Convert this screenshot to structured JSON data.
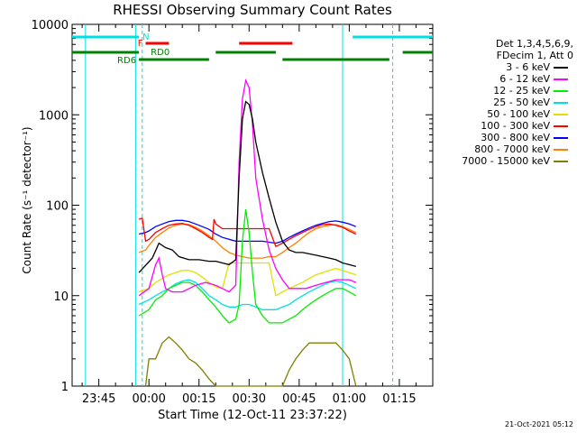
{
  "chart_data": {
    "type": "line",
    "title": "RHESSI Observing Summary Count Rates",
    "xlabel": "Start Time (12-Oct-11 23:37:22)",
    "ylabel": "Count Rate (s⁻¹ detector⁻¹)",
    "yscale": "log",
    "ylim": [
      1,
      10000
    ],
    "xlim_min": [
      -23,
      85
    ],
    "x_tick_labels": [
      "23:45",
      "00:00",
      "00:15",
      "00:30",
      "00:45",
      "01:00",
      "01:15"
    ],
    "x_tick_minutes": [
      -15,
      0,
      15,
      30,
      45,
      60,
      75
    ],
    "y_tick_labels": [
      "1",
      "10",
      "100",
      "1000",
      "10000"
    ],
    "y_tick_values": [
      1,
      10,
      100,
      1000,
      10000
    ],
    "legend_header": [
      "Det 1,3,4,5,6,9,",
      "FDecim 1, Att 0"
    ],
    "series": [
      {
        "name": "3 - 6 keV",
        "color": "#000000",
        "points": [
          [
            -3,
            18
          ],
          [
            1,
            26
          ],
          [
            3,
            38
          ],
          [
            5,
            34
          ],
          [
            7,
            32
          ],
          [
            9,
            27
          ],
          [
            12,
            25
          ],
          [
            15,
            25
          ],
          [
            18,
            24
          ],
          [
            20,
            24
          ],
          [
            22,
            23
          ],
          [
            24,
            22
          ],
          [
            26,
            25
          ],
          [
            27,
            200
          ],
          [
            28,
            900
          ],
          [
            29,
            1400
          ],
          [
            30,
            1300
          ],
          [
            31,
            900
          ],
          [
            32,
            500
          ],
          [
            34,
            230
          ],
          [
            36,
            120
          ],
          [
            38,
            65
          ],
          [
            40,
            40
          ],
          [
            42,
            32
          ],
          [
            44,
            30
          ],
          [
            46,
            30
          ],
          [
            48,
            29
          ],
          [
            50,
            28
          ],
          [
            52,
            27
          ],
          [
            54,
            26
          ],
          [
            56,
            25
          ],
          [
            58,
            23
          ],
          [
            60,
            22
          ],
          [
            62,
            21
          ]
        ]
      },
      {
        "name": "6 - 12 keV",
        "color": "#ff00ff",
        "points": [
          [
            -3,
            10
          ],
          [
            0,
            12
          ],
          [
            2,
            22
          ],
          [
            3,
            26
          ],
          [
            4,
            17
          ],
          [
            5,
            12
          ],
          [
            7,
            11
          ],
          [
            10,
            11
          ],
          [
            14,
            13
          ],
          [
            17,
            14
          ],
          [
            20,
            13
          ],
          [
            22,
            12
          ],
          [
            24,
            11
          ],
          [
            26,
            13
          ],
          [
            27,
            300
          ],
          [
            28,
            1500
          ],
          [
            29,
            2400
          ],
          [
            30,
            2000
          ],
          [
            31,
            800
          ],
          [
            32,
            200
          ],
          [
            34,
            70
          ],
          [
            36,
            32
          ],
          [
            38,
            20
          ],
          [
            40,
            15
          ],
          [
            42,
            12
          ],
          [
            44,
            12
          ],
          [
            47,
            12
          ],
          [
            50,
            13
          ],
          [
            53,
            14
          ],
          [
            56,
            15
          ],
          [
            58,
            15
          ],
          [
            60,
            15
          ],
          [
            62,
            14
          ]
        ]
      },
      {
        "name": "12 - 25 keV",
        "color": "#00ee00",
        "points": [
          [
            -3,
            6
          ],
          [
            0,
            7
          ],
          [
            2,
            9
          ],
          [
            4,
            10
          ],
          [
            6,
            12
          ],
          [
            8,
            13
          ],
          [
            10,
            14
          ],
          [
            12,
            14
          ],
          [
            14,
            13
          ],
          [
            16,
            11
          ],
          [
            18,
            9
          ],
          [
            20,
            7.5
          ],
          [
            22,
            6
          ],
          [
            24,
            5
          ],
          [
            26,
            5.5
          ],
          [
            27,
            8
          ],
          [
            28,
            40
          ],
          [
            29,
            90
          ],
          [
            30,
            50
          ],
          [
            31,
            18
          ],
          [
            32,
            8
          ],
          [
            34,
            6
          ],
          [
            36,
            5
          ],
          [
            38,
            5
          ],
          [
            40,
            5
          ],
          [
            42,
            5.5
          ],
          [
            44,
            6
          ],
          [
            46,
            7
          ],
          [
            48,
            8
          ],
          [
            50,
            9
          ],
          [
            52,
            10
          ],
          [
            54,
            11
          ],
          [
            56,
            12
          ],
          [
            58,
            12
          ],
          [
            60,
            11
          ],
          [
            62,
            10
          ]
        ]
      },
      {
        "name": "25 - 50 keV",
        "color": "#00e0e0",
        "points": [
          [
            -3,
            8
          ],
          [
            0,
            9
          ],
          [
            2,
            10
          ],
          [
            4,
            11
          ],
          [
            6,
            12
          ],
          [
            8,
            13.5
          ],
          [
            10,
            14.5
          ],
          [
            12,
            15
          ],
          [
            14,
            14
          ],
          [
            16,
            12
          ],
          [
            18,
            10
          ],
          [
            20,
            9
          ],
          [
            22,
            8
          ],
          [
            24,
            7.5
          ],
          [
            26,
            7.5
          ],
          [
            28,
            8
          ],
          [
            30,
            8
          ],
          [
            32,
            7.5
          ],
          [
            34,
            7
          ],
          [
            36,
            7
          ],
          [
            38,
            7
          ],
          [
            40,
            7.5
          ],
          [
            42,
            8
          ],
          [
            44,
            9
          ],
          [
            46,
            10
          ],
          [
            48,
            11
          ],
          [
            50,
            12
          ],
          [
            52,
            13
          ],
          [
            54,
            14
          ],
          [
            56,
            14.5
          ],
          [
            58,
            14
          ],
          [
            60,
            13
          ],
          [
            62,
            12
          ]
        ]
      },
      {
        "name": "50 - 100 keV",
        "color": "#e0e000",
        "points": [
          [
            -3,
            11
          ],
          [
            0,
            12
          ],
          [
            2,
            14
          ],
          [
            4,
            15.5
          ],
          [
            6,
            17
          ],
          [
            8,
            18
          ],
          [
            10,
            19
          ],
          [
            12,
            19
          ],
          [
            14,
            18
          ],
          [
            16,
            16
          ],
          [
            18,
            14
          ],
          [
            20,
            12.5
          ],
          [
            22,
            12
          ],
          [
            24,
            23
          ],
          [
            26,
            23
          ],
          [
            28,
            23
          ],
          [
            30,
            23
          ],
          [
            32,
            23
          ],
          [
            34,
            23
          ],
          [
            36,
            23
          ],
          [
            38,
            10
          ],
          [
            40,
            11
          ],
          [
            42,
            12
          ],
          [
            44,
            13
          ],
          [
            46,
            14
          ],
          [
            48,
            15.5
          ],
          [
            50,
            17
          ],
          [
            52,
            18
          ],
          [
            54,
            19
          ],
          [
            56,
            20
          ],
          [
            58,
            19
          ],
          [
            60,
            18
          ],
          [
            62,
            17
          ]
        ]
      },
      {
        "name": "100 - 300 keV",
        "color": "#ff0000",
        "points": [
          [
            -3,
            70
          ],
          [
            -2,
            72
          ],
          [
            -1,
            40
          ],
          [
            0,
            42
          ],
          [
            2,
            50
          ],
          [
            4,
            55
          ],
          [
            6,
            60
          ],
          [
            8,
            62
          ],
          [
            10,
            63
          ],
          [
            12,
            60
          ],
          [
            14,
            55
          ],
          [
            16,
            50
          ],
          [
            18,
            44
          ],
          [
            19,
            42
          ],
          [
            19.5,
            70
          ],
          [
            20,
            62
          ],
          [
            22,
            55
          ],
          [
            24,
            55
          ],
          [
            26,
            55
          ],
          [
            28,
            55
          ],
          [
            30,
            55
          ],
          [
            32,
            55
          ],
          [
            34,
            55
          ],
          [
            36,
            55
          ],
          [
            38,
            35
          ],
          [
            40,
            38
          ],
          [
            42,
            42
          ],
          [
            44,
            46
          ],
          [
            46,
            50
          ],
          [
            48,
            54
          ],
          [
            50,
            58
          ],
          [
            52,
            61
          ],
          [
            54,
            62
          ],
          [
            56,
            60
          ],
          [
            58,
            57
          ],
          [
            60,
            52
          ],
          [
            62,
            48
          ]
        ]
      },
      {
        "name": "300 - 800 keV",
        "color": "#0000ff",
        "points": [
          [
            -3,
            48
          ],
          [
            -1,
            50
          ],
          [
            0,
            52
          ],
          [
            2,
            58
          ],
          [
            4,
            62
          ],
          [
            6,
            66
          ],
          [
            8,
            68
          ],
          [
            10,
            68
          ],
          [
            12,
            66
          ],
          [
            14,
            62
          ],
          [
            16,
            58
          ],
          [
            18,
            54
          ],
          [
            20,
            48
          ],
          [
            22,
            44
          ],
          [
            24,
            42
          ],
          [
            26,
            40
          ],
          [
            28,
            40
          ],
          [
            30,
            40
          ],
          [
            32,
            40
          ],
          [
            34,
            40
          ],
          [
            36,
            39
          ],
          [
            38,
            38
          ],
          [
            40,
            40
          ],
          [
            42,
            44
          ],
          [
            44,
            48
          ],
          [
            46,
            52
          ],
          [
            48,
            56
          ],
          [
            50,
            60
          ],
          [
            52,
            63
          ],
          [
            54,
            66
          ],
          [
            56,
            67
          ],
          [
            58,
            65
          ],
          [
            60,
            62
          ],
          [
            62,
            58
          ]
        ]
      },
      {
        "name": "800 - 7000 keV",
        "color": "#ff8000",
        "points": [
          [
            -3,
            30
          ],
          [
            -1,
            32
          ],
          [
            0,
            36
          ],
          [
            2,
            44
          ],
          [
            4,
            50
          ],
          [
            6,
            56
          ],
          [
            8,
            60
          ],
          [
            10,
            62
          ],
          [
            12,
            61
          ],
          [
            14,
            57
          ],
          [
            16,
            52
          ],
          [
            18,
            46
          ],
          [
            20,
            40
          ],
          [
            22,
            34
          ],
          [
            24,
            30
          ],
          [
            26,
            28
          ],
          [
            28,
            27
          ],
          [
            30,
            26
          ],
          [
            32,
            26
          ],
          [
            34,
            26
          ],
          [
            36,
            27
          ],
          [
            38,
            27
          ],
          [
            40,
            30
          ],
          [
            42,
            34
          ],
          [
            44,
            38
          ],
          [
            46,
            44
          ],
          [
            48,
            50
          ],
          [
            50,
            55
          ],
          [
            52,
            58
          ],
          [
            54,
            60
          ],
          [
            56,
            61
          ],
          [
            58,
            58
          ],
          [
            60,
            54
          ],
          [
            62,
            50
          ]
        ]
      },
      {
        "name": "7000 - 15000 keV",
        "color": "#808000",
        "points": [
          [
            -1,
            1
          ],
          [
            0,
            2
          ],
          [
            2,
            2
          ],
          [
            4,
            3
          ],
          [
            6,
            3.5
          ],
          [
            8,
            3
          ],
          [
            10,
            2.5
          ],
          [
            12,
            2
          ],
          [
            14,
            1.8
          ],
          [
            16,
            1.5
          ],
          [
            18,
            1.2
          ],
          [
            20,
            1
          ],
          [
            40,
            1
          ],
          [
            42,
            1.5
          ],
          [
            44,
            2
          ],
          [
            46,
            2.5
          ],
          [
            48,
            3
          ],
          [
            50,
            3
          ],
          [
            52,
            3
          ],
          [
            54,
            3
          ],
          [
            56,
            3
          ],
          [
            58,
            2.5
          ],
          [
            60,
            2
          ],
          [
            62,
            1
          ]
        ]
      }
    ],
    "flag_labels": [
      {
        "name": "N",
        "color": "#00e0e0"
      },
      {
        "name": "F",
        "color": "#ff0000"
      },
      {
        "name": "RD0",
        "color": "#008000"
      },
      {
        "name": "RD6",
        "color": "#008000"
      }
    ],
    "flag_intervals": {
      "N": [
        [
          -23,
          -3
        ],
        [
          61,
          85
        ]
      ],
      "F": [
        [
          -1,
          6
        ],
        [
          27,
          43
        ]
      ],
      "RD0": [
        [
          -23,
          -3
        ],
        [
          20,
          38
        ],
        [
          76,
          85
        ]
      ],
      "RD6": [
        [
          -3,
          18
        ],
        [
          40,
          72
        ]
      ]
    },
    "vertical_lines": {
      "solid_minutes": [
        -19,
        -4,
        58
      ],
      "dashed_minutes": [
        -2,
        73
      ]
    },
    "footer": "21-Oct-2021 05:12"
  }
}
